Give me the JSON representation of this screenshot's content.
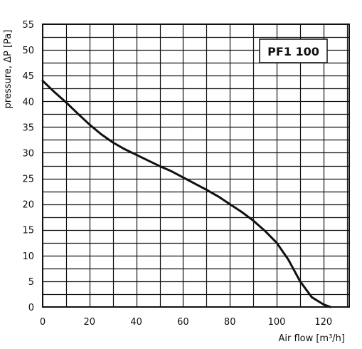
{
  "chart_data": {
    "type": "line",
    "model_label": "PF1 100",
    "ylabel": "pressure, ΔP [Pa]",
    "xlabel": "Air flow [m³/h]",
    "xlim": [
      0,
      131
    ],
    "ylim": [
      0,
      55
    ],
    "x_ticks": [
      0,
      20,
      40,
      60,
      80,
      100,
      120
    ],
    "y_ticks": [
      0,
      5,
      10,
      15,
      20,
      25,
      30,
      35,
      40,
      45,
      50,
      55
    ],
    "x_grid_step": 10,
    "y_grid_step": 2.5,
    "grid": true,
    "series": [
      {
        "x": [
          0,
          5,
          10,
          15,
          20,
          25,
          30,
          35,
          40,
          45,
          50,
          55,
          60,
          65,
          70,
          75,
          80,
          85,
          90,
          95,
          100,
          105,
          110,
          115,
          120,
          123
        ],
        "y": [
          44,
          41.8,
          39.8,
          37.6,
          35.5,
          33.6,
          32,
          30.7,
          29.6,
          28.5,
          27.4,
          26.4,
          25.2,
          24,
          22.8,
          21.5,
          20,
          18.5,
          16.8,
          14.8,
          12.5,
          9.2,
          5,
          1.9,
          0.5,
          0
        ]
      }
    ]
  }
}
